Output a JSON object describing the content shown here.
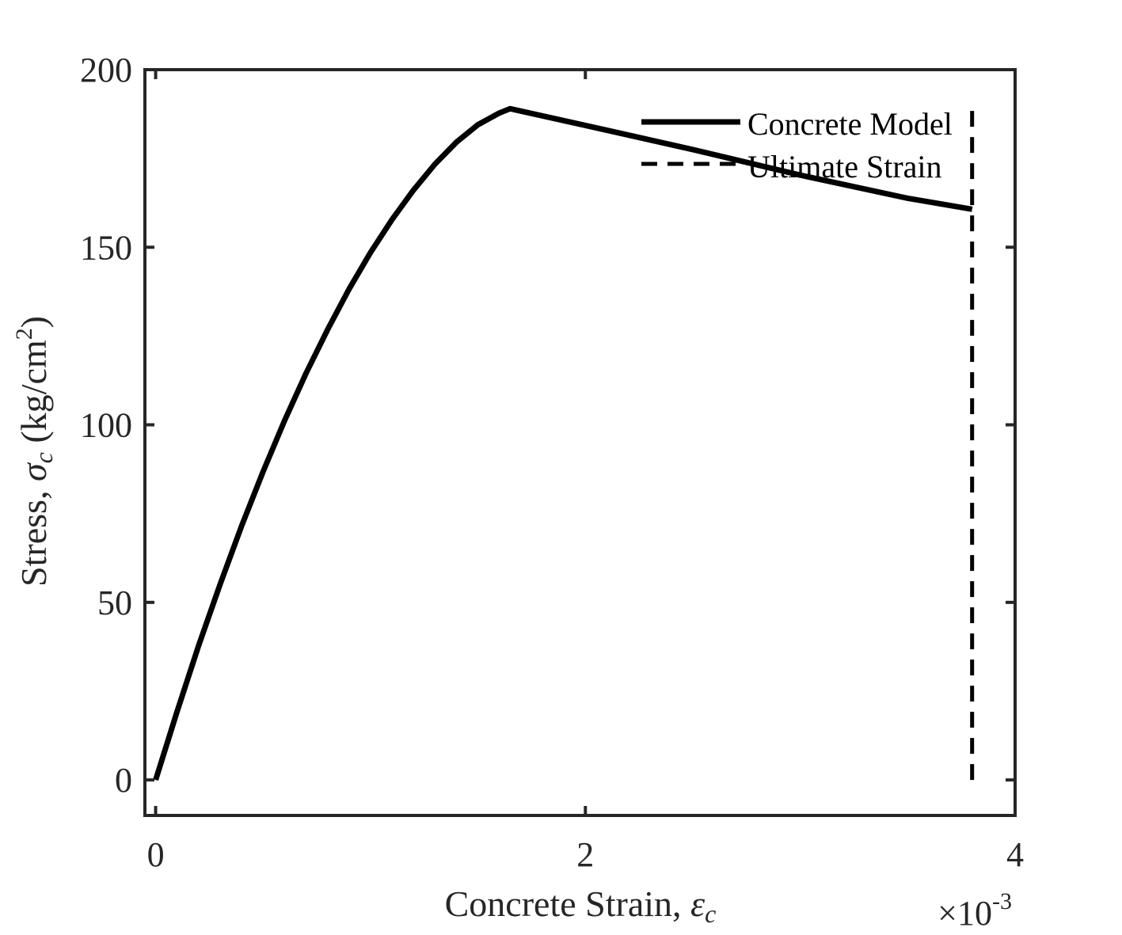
{
  "chart_data": {
    "type": "line",
    "xlabel": {
      "text": "Concrete Strain, ",
      "symbol": "ε",
      "subscript": "c"
    },
    "ylabel": {
      "text": "Stress, ",
      "symbol": "σ",
      "subscript": "c",
      "unit_open": " (kg/cm",
      "unit_power": "2",
      "unit_close": ")"
    },
    "x_exponent": {
      "prefix": "×10",
      "power": "-3"
    },
    "xlim": [
      -0.05,
      4
    ],
    "ylim": [
      -10,
      200
    ],
    "xticks": [
      0,
      2,
      4
    ],
    "xtick_labels": [
      "0",
      "2",
      "4"
    ],
    "yticks": [
      0,
      50,
      100,
      150,
      200
    ],
    "ytick_labels": [
      "0",
      "50",
      "100",
      "150",
      "200"
    ],
    "grid": false,
    "legend_position": "top-right",
    "series": [
      {
        "name": "Concrete Model",
        "style": "solid",
        "color": "#000000",
        "points": [
          [
            0.0,
            0.0
          ],
          [
            0.1,
            19.3
          ],
          [
            0.2,
            37.8
          ],
          [
            0.3,
            55.1
          ],
          [
            0.4,
            71.5
          ],
          [
            0.5,
            86.8
          ],
          [
            0.6,
            101.2
          ],
          [
            0.7,
            114.5
          ],
          [
            0.8,
            126.8
          ],
          [
            0.9,
            138.2
          ],
          [
            1.0,
            148.5
          ],
          [
            1.1,
            157.8
          ],
          [
            1.2,
            166.1
          ],
          [
            1.3,
            173.4
          ],
          [
            1.4,
            179.6
          ],
          [
            1.5,
            184.5
          ],
          [
            1.6,
            187.8
          ],
          [
            1.65,
            189.0
          ],
          [
            2.0,
            184.3
          ],
          [
            2.5,
            177.5
          ],
          [
            3.0,
            170.3
          ],
          [
            3.5,
            163.8
          ],
          [
            3.8,
            160.7
          ]
        ]
      },
      {
        "name": "Ultimate Strain",
        "style": "dashed",
        "color": "#000000",
        "points": [
          [
            3.8,
            0
          ],
          [
            3.8,
            190
          ]
        ]
      }
    ]
  }
}
